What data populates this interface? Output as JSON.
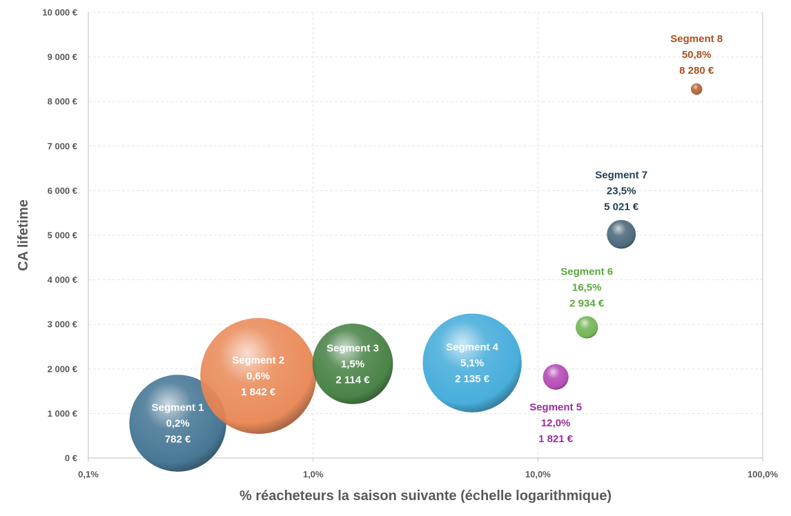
{
  "chart_data": {
    "type": "scatter",
    "variant": "bubble",
    "title": "",
    "xlabel": "% réacheteurs la saison suivante (échelle logarithmique)",
    "ylabel": "CA lifetime",
    "xscale": "log",
    "xlim": [
      0.001,
      1
    ],
    "ylim": [
      0,
      10000
    ],
    "grid": true,
    "legend": "none",
    "xticks": [
      {
        "value": 0.001,
        "label": "0,1%"
      },
      {
        "value": 0.01,
        "label": "1,0%"
      },
      {
        "value": 0.1,
        "label": "10,0%"
      },
      {
        "value": 1,
        "label": "100,0%"
      }
    ],
    "yticks": [
      {
        "value": 0,
        "label": "0 €"
      },
      {
        "value": 1000,
        "label": "1 000 €"
      },
      {
        "value": 2000,
        "label": "2 000 €"
      },
      {
        "value": 3000,
        "label": "3 000 €"
      },
      {
        "value": 4000,
        "label": "4 000 €"
      },
      {
        "value": 5000,
        "label": "5 000 €"
      },
      {
        "value": 6000,
        "label": "6 000 €"
      },
      {
        "value": 7000,
        "label": "7 000 €"
      },
      {
        "value": 8000,
        "label": "8 000 €"
      },
      {
        "value": 9000,
        "label": "9 000 €"
      },
      {
        "value": 10000,
        "label": "10 000 €"
      }
    ],
    "series": [
      {
        "name": "Segment 1",
        "x": 0.0025,
        "y": 782,
        "size": 1.0,
        "color": "#3a6e8e",
        "label_pct": "0,2%",
        "label_value": "782 €",
        "label_color": "#ffffff",
        "label_position": "inside"
      },
      {
        "name": "Segment 2",
        "x": 0.0057,
        "y": 1842,
        "size": 1.43,
        "color": "#e8834f",
        "label_pct": "0,6%",
        "label_value": "1 842 €",
        "label_color": "#ffffff",
        "label_position": "inside"
      },
      {
        "name": "Segment 3",
        "x": 0.015,
        "y": 2114,
        "size": 0.69,
        "color": "#3d7a3a",
        "label_pct": "1,5%",
        "label_value": "2 114 €",
        "label_color": "#ffffff",
        "label_position": "inside"
      },
      {
        "name": "Segment 4",
        "x": 0.051,
        "y": 2135,
        "size": 1.04,
        "color": "#3aa8d8",
        "label_pct": "5,1%",
        "label_value": "2 135 €",
        "label_color": "#ffffff",
        "label_position": "inside"
      },
      {
        "name": "Segment 5",
        "x": 0.12,
        "y": 1821,
        "size": 0.07,
        "color": "#b040b0",
        "label_pct": "12,0%",
        "label_value": "1 821 €",
        "label_color": "#9b2c9b",
        "label_position": "below"
      },
      {
        "name": "Segment 6",
        "x": 0.165,
        "y": 2934,
        "size": 0.053,
        "color": "#6ab04a",
        "label_pct": "16,5%",
        "label_value": "2 934 €",
        "label_color": "#5aa83a",
        "label_position": "above"
      },
      {
        "name": "Segment 7",
        "x": 0.235,
        "y": 5021,
        "size": 0.089,
        "color": "#3f5f72",
        "label_pct": "23,5%",
        "label_value": "5 021 €",
        "label_color": "#1f3e52",
        "label_position": "above"
      },
      {
        "name": "Segment 8",
        "x": 0.508,
        "y": 8280,
        "size": 0.014,
        "color": "#b0582a",
        "label_pct": "50,8%",
        "label_value": "8 280 €",
        "label_color": "#a8501e",
        "label_position": "above"
      }
    ]
  }
}
